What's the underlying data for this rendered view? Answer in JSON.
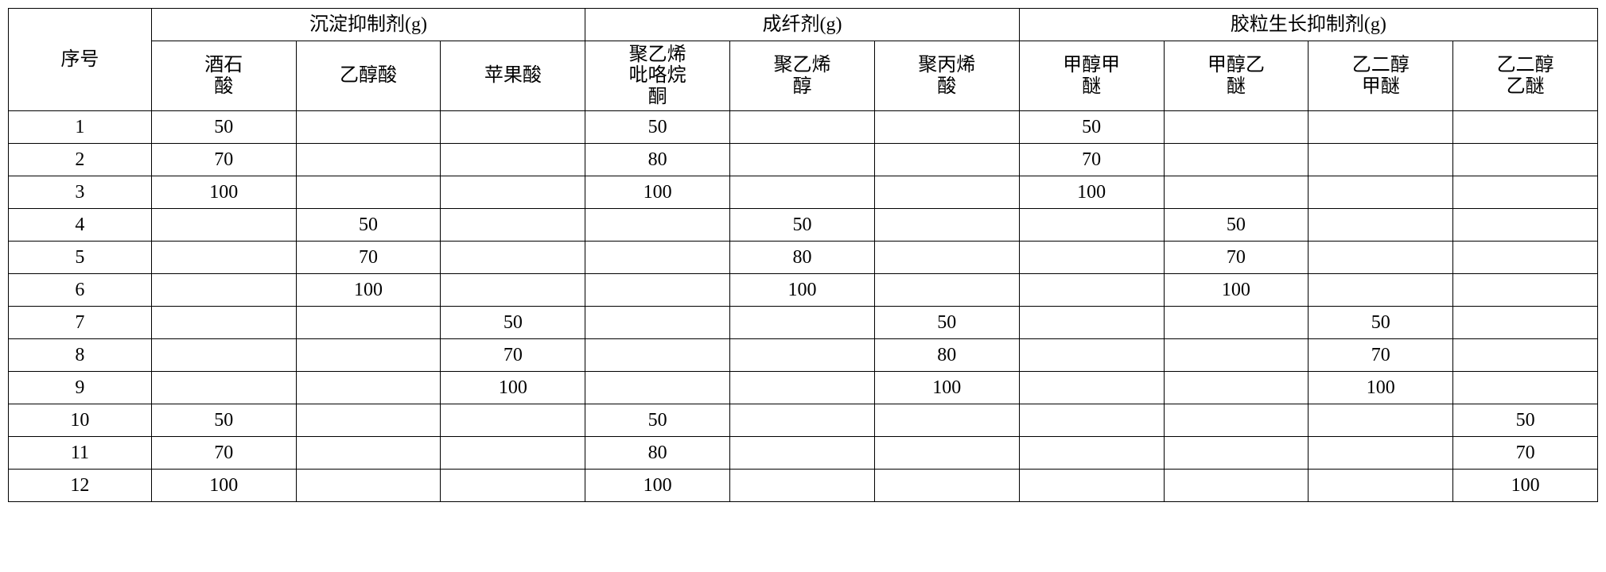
{
  "table": {
    "header": {
      "seq_col": "序号",
      "group1_title": "沉淀抑制剂(g)",
      "group2_title": "成纤剂(g)",
      "group3_title": "胶粒生长抑制剂(g)",
      "sub1": "酒石\n酸",
      "sub2": "乙醇酸",
      "sub3": "苹果酸",
      "sub4": "聚乙烯\n吡咯烷\n酮",
      "sub5": "聚乙烯\n醇",
      "sub6": "聚丙烯\n酸",
      "sub7": "甲醇甲\n醚",
      "sub8": "甲醇乙\n醚",
      "sub9": "乙二醇\n甲醚",
      "sub10": "乙二醇\n乙醚"
    },
    "rows": [
      {
        "seq": "1",
        "c1": "50",
        "c2": "",
        "c3": "",
        "c4": "50",
        "c5": "",
        "c6": "",
        "c7": "50",
        "c8": "",
        "c9": "",
        "c10": ""
      },
      {
        "seq": "2",
        "c1": "70",
        "c2": "",
        "c3": "",
        "c4": "80",
        "c5": "",
        "c6": "",
        "c7": "70",
        "c8": "",
        "c9": "",
        "c10": ""
      },
      {
        "seq": "3",
        "c1": "100",
        "c2": "",
        "c3": "",
        "c4": "100",
        "c5": "",
        "c6": "",
        "c7": "100",
        "c8": "",
        "c9": "",
        "c10": ""
      },
      {
        "seq": "4",
        "c1": "",
        "c2": "50",
        "c3": "",
        "c4": "",
        "c5": "50",
        "c6": "",
        "c7": "",
        "c8": "50",
        "c9": "",
        "c10": ""
      },
      {
        "seq": "5",
        "c1": "",
        "c2": "70",
        "c3": "",
        "c4": "",
        "c5": "80",
        "c6": "",
        "c7": "",
        "c8": "70",
        "c9": "",
        "c10": ""
      },
      {
        "seq": "6",
        "c1": "",
        "c2": "100",
        "c3": "",
        "c4": "",
        "c5": "100",
        "c6": "",
        "c7": "",
        "c8": "100",
        "c9": "",
        "c10": ""
      },
      {
        "seq": "7",
        "c1": "",
        "c2": "",
        "c3": "50",
        "c4": "",
        "c5": "",
        "c6": "50",
        "c7": "",
        "c8": "",
        "c9": "50",
        "c10": ""
      },
      {
        "seq": "8",
        "c1": "",
        "c2": "",
        "c3": "70",
        "c4": "",
        "c5": "",
        "c6": "80",
        "c7": "",
        "c8": "",
        "c9": "70",
        "c10": ""
      },
      {
        "seq": "9",
        "c1": "",
        "c2": "",
        "c3": "100",
        "c4": "",
        "c5": "",
        "c6": "100",
        "c7": "",
        "c8": "",
        "c9": "100",
        "c10": ""
      },
      {
        "seq": "10",
        "c1": "50",
        "c2": "",
        "c3": "",
        "c4": "50",
        "c5": "",
        "c6": "",
        "c7": "",
        "c8": "",
        "c9": "",
        "c10": "50"
      },
      {
        "seq": "11",
        "c1": "70",
        "c2": "",
        "c3": "",
        "c4": "80",
        "c5": "",
        "c6": "",
        "c7": "",
        "c8": "",
        "c9": "",
        "c10": "70"
      },
      {
        "seq": "12",
        "c1": "100",
        "c2": "",
        "c3": "",
        "c4": "100",
        "c5": "",
        "c6": "",
        "c7": "",
        "c8": "",
        "c9": "",
        "c10": "100"
      }
    ],
    "styling": {
      "border_color": "#000000",
      "border_width": 1.5,
      "background_color": "#ffffff",
      "font_size": 24,
      "font_family": "SimSun",
      "text_align": "center",
      "cell_padding": 4
    }
  }
}
